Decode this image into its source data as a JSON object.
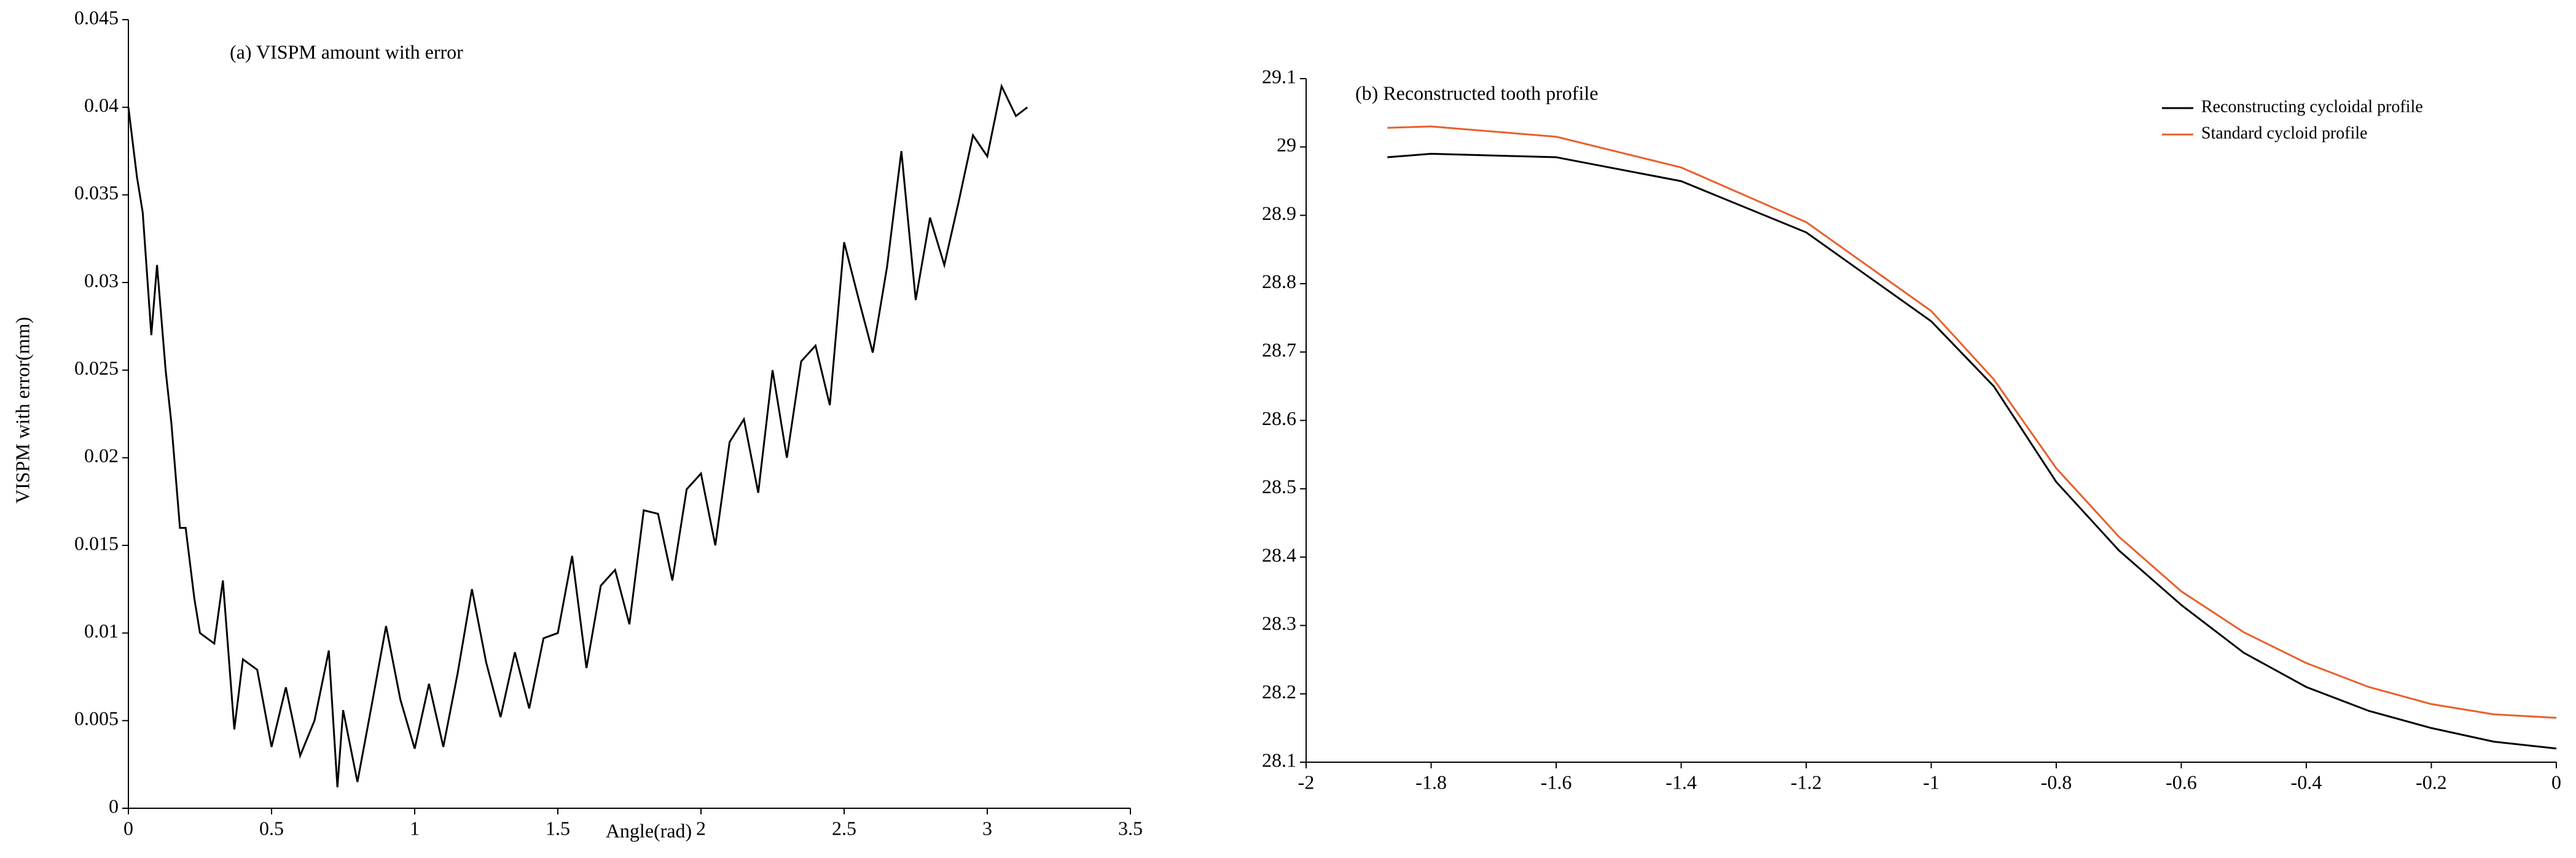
{
  "chart_data": [
    {
      "type": "line",
      "title": "(a) VISPM amount with error",
      "xlabel": "Angle(rad)",
      "ylabel": "VISPM with error(mm)",
      "color": "#000000",
      "x": [
        0,
        0.03,
        0.05,
        0.08,
        0.1,
        0.13,
        0.15,
        0.18,
        0.2,
        0.23,
        0.25,
        0.3,
        0.33,
        0.37,
        0.4,
        0.45,
        0.5,
        0.55,
        0.6,
        0.65,
        0.7,
        0.73,
        0.75,
        0.8,
        0.85,
        0.9,
        0.95,
        1.0,
        1.05,
        1.1,
        1.15,
        1.2,
        1.25,
        1.3,
        1.35,
        1.4,
        1.45,
        1.5,
        1.55,
        1.6,
        1.65,
        1.7,
        1.75,
        1.8,
        1.85,
        1.9,
        1.95,
        2.0,
        2.05,
        2.1,
        2.15,
        2.2,
        2.25,
        2.3,
        2.35,
        2.4,
        2.45,
        2.5,
        2.55,
        2.6,
        2.65,
        2.7,
        2.75,
        2.8,
        2.85,
        2.9,
        2.95,
        3.0,
        3.05,
        3.1,
        3.14
      ],
      "values": [
        0.04,
        0.036,
        0.034,
        0.027,
        0.031,
        0.025,
        0.022,
        0.016,
        0.016,
        0.012,
        0.01,
        0.0094,
        0.013,
        0.0045,
        0.0085,
        0.0079,
        0.0035,
        0.0069,
        0.003,
        0.005,
        0.009,
        0.0012,
        0.0056,
        0.0015,
        0.0059,
        0.0104,
        0.0062,
        0.0034,
        0.0071,
        0.0035,
        0.0077,
        0.0125,
        0.0083,
        0.0052,
        0.0089,
        0.0057,
        0.0097,
        0.01,
        0.0144,
        0.008,
        0.0127,
        0.0136,
        0.0105,
        0.017,
        0.0168,
        0.013,
        0.0182,
        0.0191,
        0.015,
        0.0209,
        0.0222,
        0.018,
        0.025,
        0.02,
        0.0255,
        0.0264,
        0.023,
        0.0323,
        0.0291,
        0.026,
        0.0309,
        0.0375,
        0.029,
        0.0337,
        0.031,
        0.0346,
        0.0384,
        0.0372,
        0.0412,
        0.0395,
        0.04
      ],
      "xlim": [
        0,
        3.5
      ],
      "xticks": [
        0,
        0.5,
        1,
        1.5,
        2,
        2.5,
        3,
        3.5
      ],
      "ylim": [
        0,
        0.045
      ],
      "yticks": [
        0,
        0.005,
        0.01,
        0.015,
        0.02,
        0.025,
        0.03,
        0.035,
        0.04,
        0.045
      ],
      "grid": false
    },
    {
      "type": "line",
      "title": "(b) Reconstructed tooth profile",
      "legend": "upper right",
      "x": [
        -1.87,
        -1.8,
        -1.6,
        -1.4,
        -1.2,
        -1.0,
        -0.9,
        -0.8,
        -0.7,
        -0.6,
        -0.5,
        -0.4,
        -0.3,
        -0.2,
        -0.1,
        0
      ],
      "series": [
        {
          "name": "Reconstructing cycloidal  profile",
          "color": "#000000",
          "values": [
            28.985,
            28.99,
            28.985,
            28.95,
            28.875,
            28.745,
            28.65,
            28.51,
            28.41,
            28.33,
            28.26,
            28.21,
            28.175,
            28.15,
            28.13,
            28.12
          ]
        },
        {
          "name": "Standard cycloid profile",
          "color": "#e8602c",
          "values": [
            29.028,
            29.03,
            29.015,
            28.97,
            28.89,
            28.76,
            28.66,
            28.53,
            28.43,
            28.35,
            28.29,
            28.245,
            28.21,
            28.185,
            28.17,
            28.165
          ]
        }
      ],
      "xlim": [
        -2,
        0
      ],
      "xticks": [
        -2,
        -1.8,
        -1.6,
        -1.4,
        -1.2,
        -1,
        -0.8,
        -0.6,
        -0.4,
        -0.2,
        0
      ],
      "ylim": [
        28.1,
        29.1
      ],
      "yticks": [
        28.1,
        28.2,
        28.3,
        28.4,
        28.5,
        28.6,
        28.7,
        28.8,
        28.9,
        29,
        29.1
      ],
      "grid": false
    }
  ]
}
